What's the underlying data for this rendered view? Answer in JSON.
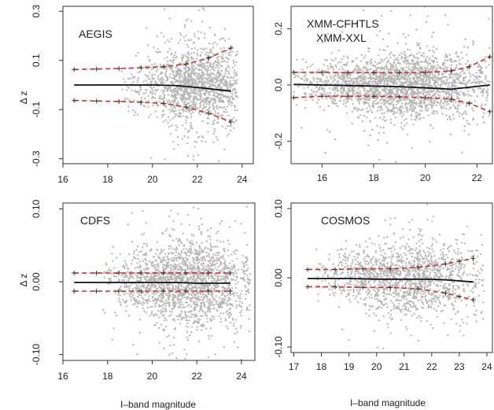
{
  "figure": {
    "ylabel": "Δ z",
    "xlabel": "I–band magnitude"
  },
  "chart_data": [
    {
      "type": "scatter",
      "title": "AEGIS",
      "title_lines": [
        "AEGIS"
      ],
      "xlim": [
        16,
        24.5
      ],
      "ylim": [
        -0.32,
        0.32
      ],
      "xticks": [
        16,
        18,
        20,
        22,
        24
      ],
      "yticks": [
        -0.3,
        -0.1,
        0.1,
        0.3
      ],
      "ytick_labels": [
        "-0.3",
        "-0.1",
        "0.1",
        "0.3"
      ],
      "cloud": {
        "xmin": 18.5,
        "xmax": 23.8,
        "peak": 22.0,
        "sigma": 0.08,
        "n": 1500
      },
      "series": [
        {
          "name": "median",
          "style": "solid-black",
          "x": [
            16.5,
            17,
            18,
            19,
            20,
            21,
            22,
            23,
            23.5
          ],
          "y": [
            0,
            0,
            0,
            0,
            0,
            -0.002,
            -0.01,
            -0.02,
            -0.025
          ]
        },
        {
          "name": "upper",
          "style": "dashed-red",
          "x": [
            16.5,
            17.5,
            18.5,
            19.5,
            20.5,
            21.5,
            22.5,
            23.5
          ],
          "y": [
            0.063,
            0.065,
            0.067,
            0.07,
            0.075,
            0.085,
            0.11,
            0.15
          ]
        },
        {
          "name": "lower",
          "style": "dashed-red",
          "x": [
            16.5,
            17.5,
            18.5,
            19.5,
            20.5,
            21.5,
            22.5,
            23.5
          ],
          "y": [
            -0.063,
            -0.065,
            -0.067,
            -0.07,
            -0.075,
            -0.09,
            -0.115,
            -0.15
          ]
        }
      ]
    },
    {
      "type": "scatter",
      "title": "XMM-CFHTLS XMM-XXL",
      "title_lines": [
        "XMM-CFHTLS",
        "XMM-XXL"
      ],
      "xlim": [
        14.8,
        22.6
      ],
      "ylim": [
        -0.28,
        0.28
      ],
      "xticks": [
        16,
        18,
        20,
        22
      ],
      "yticks": [
        -0.2,
        0.0,
        0.2
      ],
      "ytick_labels": [
        "-0.2",
        "0.0",
        "0.2"
      ],
      "cloud": {
        "xmin": 14.9,
        "xmax": 22.5,
        "peak": 19.0,
        "sigma": 0.055,
        "n": 2600
      },
      "series": [
        {
          "name": "median",
          "style": "solid-black",
          "x": [
            14.9,
            16,
            17,
            18,
            19,
            20,
            21,
            22.5
          ],
          "y": [
            0.002,
            0,
            -0.002,
            -0.004,
            -0.006,
            -0.01,
            -0.015,
            0
          ]
        },
        {
          "name": "upper",
          "style": "dashed-red",
          "x": [
            14.9,
            16,
            17,
            18,
            19,
            20,
            21,
            21.7,
            22.5
          ],
          "y": [
            0.045,
            0.045,
            0.044,
            0.044,
            0.043,
            0.045,
            0.05,
            0.065,
            0.1
          ]
        },
        {
          "name": "lower",
          "style": "dashed-red",
          "x": [
            14.9,
            16,
            17,
            18,
            19,
            20,
            21,
            21.7,
            22.5
          ],
          "y": [
            -0.045,
            -0.04,
            -0.04,
            -0.04,
            -0.042,
            -0.045,
            -0.05,
            -0.065,
            -0.095
          ]
        }
      ]
    },
    {
      "type": "scatter",
      "title": "CDFS",
      "title_lines": [
        "CDFS"
      ],
      "xlim": [
        16,
        24.6
      ],
      "ylim": [
        -0.108,
        0.108
      ],
      "xticks": [
        16,
        18,
        20,
        22,
        24
      ],
      "yticks": [
        -0.1,
        0.0,
        0.1
      ],
      "ytick_labels": [
        "-0.10",
        "0.00",
        "0.10"
      ],
      "cloud": {
        "xmin": 17.8,
        "xmax": 24.4,
        "peak": 21.5,
        "sigma": 0.028,
        "n": 2000
      },
      "series": [
        {
          "name": "median",
          "style": "solid-black",
          "x": [
            16.5,
            18,
            19,
            20,
            21,
            22,
            23,
            23.5
          ],
          "y": [
            -0.001,
            -0.001,
            -0.001,
            -0.001,
            -0.001,
            -0.002,
            -0.002,
            -0.002
          ]
        },
        {
          "name": "upper",
          "style": "dashed-red",
          "x": [
            16.5,
            17.5,
            18.5,
            19.5,
            20.5,
            21.5,
            22.5,
            23.5
          ],
          "y": [
            0.012,
            0.012,
            0.012,
            0.012,
            0.012,
            0.012,
            0.012,
            0.012
          ]
        },
        {
          "name": "lower",
          "style": "dashed-red",
          "x": [
            16.5,
            17.5,
            18.5,
            19.5,
            20.5,
            21.5,
            22.5,
            23.5
          ],
          "y": [
            -0.013,
            -0.013,
            -0.013,
            -0.013,
            -0.013,
            -0.013,
            -0.013,
            -0.013
          ]
        }
      ]
    },
    {
      "type": "scatter",
      "title": "COSMOS",
      "title_lines": [
        "COSMOS"
      ],
      "xlim": [
        16.9,
        24.2
      ],
      "ylim": [
        -0.108,
        0.108
      ],
      "xticks": [
        17,
        18,
        19,
        20,
        21,
        22,
        23,
        24
      ],
      "yticks": [
        -0.1,
        0.0,
        0.1
      ],
      "ytick_labels": [
        "-0.10",
        "0.00",
        "0.10"
      ],
      "cloud": {
        "xmin": 17.8,
        "xmax": 23.9,
        "peak": 21.0,
        "sigma": 0.026,
        "n": 1500
      },
      "series": [
        {
          "name": "median",
          "style": "solid-black",
          "x": [
            17.5,
            18,
            19,
            20,
            21,
            22,
            22.5,
            23.5
          ],
          "y": [
            -0.001,
            -0.001,
            -0.001,
            -0.002,
            -0.002,
            -0.002,
            -0.003,
            -0.006
          ]
        },
        {
          "name": "upper",
          "style": "dashed-red",
          "x": [
            17.5,
            18.5,
            19.5,
            20.5,
            21.5,
            22.5,
            23,
            23.5
          ],
          "y": [
            0.012,
            0.012,
            0.013,
            0.013,
            0.015,
            0.02,
            0.024,
            0.028
          ]
        },
        {
          "name": "lower",
          "style": "dashed-red",
          "x": [
            17.5,
            18.5,
            19.5,
            20.5,
            21.5,
            22.5,
            23,
            23.5
          ],
          "y": [
            -0.013,
            -0.013,
            -0.014,
            -0.014,
            -0.016,
            -0.022,
            -0.027,
            -0.032
          ]
        }
      ]
    }
  ]
}
